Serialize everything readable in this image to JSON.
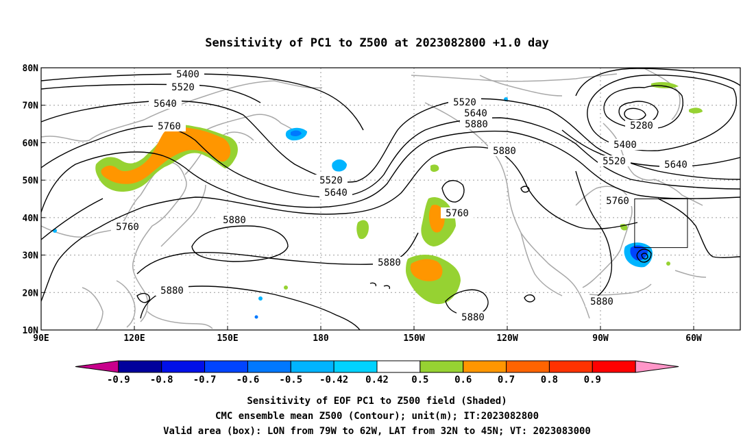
{
  "title": "Sensitivity of PC1 to Z500 at 2023082800 +1.0 day",
  "map": {
    "lon_ticks": [
      "90E",
      "120E",
      "150E",
      "180",
      "150W",
      "120W",
      "90W",
      "60W"
    ],
    "lat_ticks": [
      "80N",
      "70N",
      "60N",
      "50N",
      "40N",
      "30N",
      "20N",
      "10N"
    ],
    "grid": "dotted",
    "valid_box": {
      "lon_min": -79,
      "lon_max": -62,
      "lat_min": 32,
      "lat_max": 45
    },
    "contour_labels": [
      {
        "text": "5400"
      },
      {
        "text": "5520"
      },
      {
        "text": "5640"
      },
      {
        "text": "5760"
      },
      {
        "text": "5520"
      },
      {
        "text": "5640"
      },
      {
        "text": "5760"
      },
      {
        "text": "5880"
      },
      {
        "text": "5520"
      },
      {
        "text": "5640"
      },
      {
        "text": "5760"
      },
      {
        "text": "5880"
      },
      {
        "text": "5880"
      },
      {
        "text": "5880"
      },
      {
        "text": "5880"
      },
      {
        "text": "5880"
      },
      {
        "text": "5280"
      },
      {
        "text": "5400"
      },
      {
        "text": "5520"
      },
      {
        "text": "5640"
      },
      {
        "text": "5760"
      },
      {
        "text": "5880"
      }
    ]
  },
  "colorbar": {
    "labels": [
      "-0.9",
      "-0.8",
      "-0.7",
      "-0.6",
      "-0.5",
      "-0.42",
      "0.42",
      "0.5",
      "0.6",
      "0.7",
      "0.8",
      "0.9"
    ],
    "colors": [
      "#c8008c",
      "#00009c",
      "#0010e8",
      "#0044ff",
      "#0078ff",
      "#00b4ff",
      "#00d2ff",
      "#ffffff",
      "#96d232",
      "#ff9600",
      "#ff6400",
      "#ff3200",
      "#ff0000",
      "#ff96c8"
    ]
  },
  "captions": {
    "line1": "Sensitivity of EOF PC1 to Z500 field (Shaded)",
    "line2": "CMC ensemble mean Z500 (Contour); unit(m); IT:2023082800",
    "line3": "Valid area (box): LON from 79W to 62W, LAT from 32N to 45N; VT: 2023083000"
  }
}
